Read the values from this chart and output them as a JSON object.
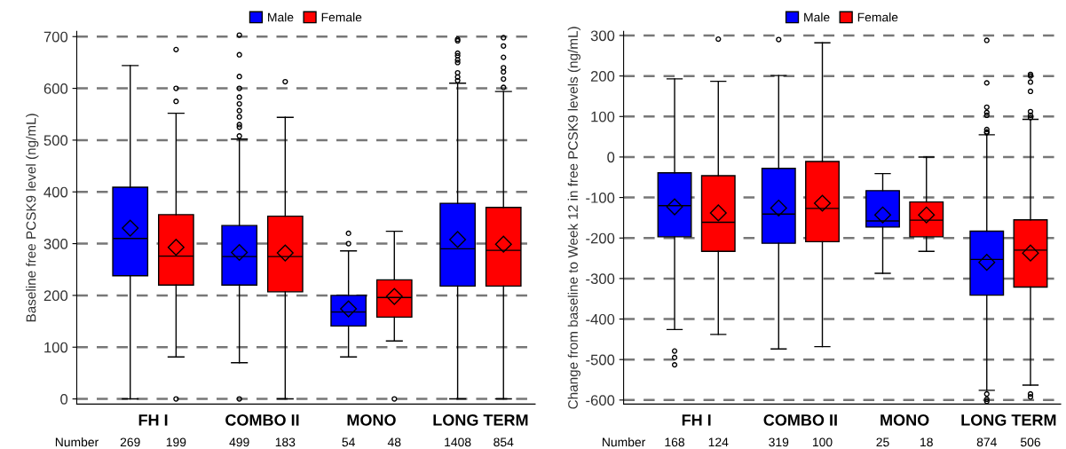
{
  "chart_data": [
    {
      "type": "box",
      "ylabel": "Baseline free PCSK9 level (ng/mL)",
      "categories": [
        "FH I",
        "COMBO II",
        "MONO",
        "LONG TERM"
      ],
      "ylim": [
        -10,
        710
      ],
      "yticks": [
        0,
        100,
        200,
        300,
        400,
        500,
        600,
        700
      ],
      "grid": "y",
      "legend": "top",
      "marker": "diamond",
      "series": [
        {
          "name": "Male",
          "color": "#0000ff",
          "boxes": [
            {
              "low": 0,
              "q1": 238,
              "median": 310,
              "q3": 409,
              "high": 644,
              "mean": 330
            },
            {
              "low": 70,
              "q1": 220,
              "median": 275,
              "q3": 335,
              "high": 502,
              "mean": 283,
              "outliers": [
                703,
                665,
                623,
                600,
                583,
                570,
                557,
                545,
                530,
                525,
                508,
                0
              ]
            },
            {
              "low": 81,
              "q1": 141,
              "median": 168,
              "q3": 200,
              "high": 286,
              "mean": 174,
              "outliers": [
                320,
                300
              ]
            },
            {
              "low": 0,
              "q1": 218,
              "median": 290,
              "q3": 378,
              "high": 610,
              "mean": 308,
              "outliers": [
                695,
                692,
                668,
                663,
                655,
                650,
                630,
                622,
                615
              ]
            }
          ]
        },
        {
          "name": "Female",
          "color": "#ff0000",
          "boxes": [
            {
              "low": 81,
              "q1": 220,
              "median": 276,
              "q3": 356,
              "high": 552,
              "mean": 293,
              "outliers": [
                675,
                600,
                575,
                0
              ]
            },
            {
              "low": 0,
              "q1": 207,
              "median": 275,
              "q3": 353,
              "high": 544,
              "mean": 282,
              "outliers": [
                613
              ]
            },
            {
              "low": 112,
              "q1": 158,
              "median": 196,
              "q3": 230,
              "high": 324,
              "mean": 198,
              "outliers": [
                0
              ]
            },
            {
              "low": 0,
              "q1": 218,
              "median": 287,
              "q3": 370,
              "high": 594,
              "mean": 299,
              "outliers": [
                698,
                682,
                660,
                640,
                632,
                618,
                602
              ]
            }
          ]
        }
      ],
      "annotations": [
        "Number",
        "269",
        "199",
        "499",
        "183",
        "54",
        "48",
        "1408",
        "854"
      ]
    },
    {
      "type": "box",
      "ylabel": "Change from baseline to Week 12 in free PCSK9 levels (ng/mL)",
      "categories": [
        "FH I",
        "COMBO II",
        "MONO",
        "LONG TERM"
      ],
      "ylim": [
        -610,
        310
      ],
      "yticks": [
        -600,
        -500,
        -400,
        -300,
        -200,
        -100,
        0,
        100,
        200,
        300
      ],
      "grid": "y",
      "legend": "top",
      "marker": "diamond",
      "series": [
        {
          "name": "Male",
          "color": "#0000ff",
          "boxes": [
            {
              "low": -426,
              "q1": -197,
              "median": -120,
              "q3": -39,
              "high": 193,
              "mean": -123,
              "outliers": [
                -479,
                -495,
                -513
              ]
            },
            {
              "low": -474,
              "q1": -213,
              "median": -141,
              "q3": -28,
              "high": 201,
              "mean": -126,
              "outliers": [
                290
              ]
            },
            {
              "low": -287,
              "q1": -173,
              "median": -158,
              "q3": -83,
              "high": -41,
              "mean": -143
            },
            {
              "low": -576,
              "q1": -341,
              "median": -253,
              "q3": -183,
              "high": 55,
              "mean": -260,
              "outliers": [
                288,
                183,
                123,
                110,
                103,
                68,
                62,
                60,
                -585,
                -598,
                -603
              ]
            }
          ]
        },
        {
          "name": "Female",
          "color": "#ff0000",
          "boxes": [
            {
              "low": -438,
              "q1": -233,
              "median": -161,
              "q3": -46,
              "high": 187,
              "mean": -138,
              "outliers": [
                291
              ]
            },
            {
              "low": -468,
              "q1": -209,
              "median": -127,
              "q3": -11,
              "high": 282,
              "mean": -114
            },
            {
              "low": -233,
              "q1": -197,
              "median": -156,
              "q3": -111,
              "high": 0,
              "mean": -143
            },
            {
              "low": -563,
              "q1": -321,
              "median": -230,
              "q3": -155,
              "high": 93,
              "mean": -237,
              "outliers": [
                204,
                200,
                185,
                162,
                112,
                103,
                97,
                -585,
                -592
              ]
            }
          ]
        }
      ],
      "annotations": [
        "Number",
        "168",
        "124",
        "319",
        "100",
        "25",
        "18",
        "874",
        "506"
      ]
    }
  ]
}
